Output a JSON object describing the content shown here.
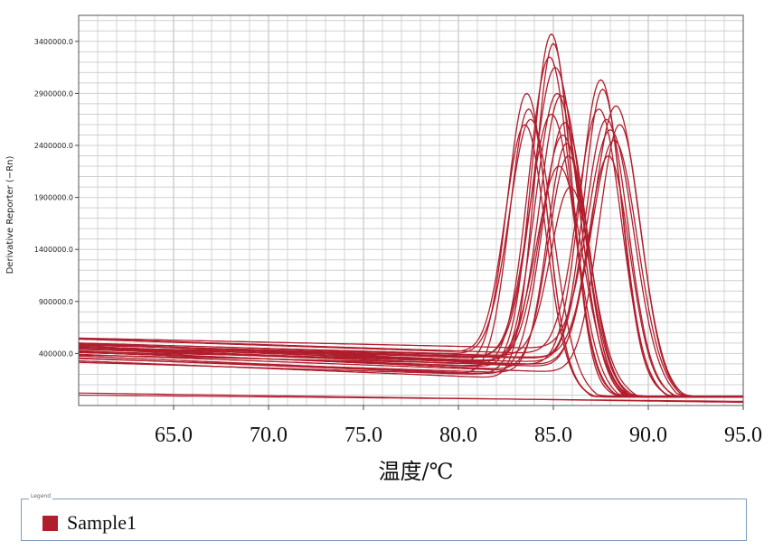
{
  "chart_data": {
    "type": "line",
    "xlabel": "温度/℃",
    "ylabel": "Derivative Reporter (−Rn)",
    "x_ticks": [
      "65.0",
      "70.0",
      "75.0",
      "80.0",
      "85.0",
      "90.0",
      "95.0"
    ],
    "x_tick_values": [
      65,
      70,
      75,
      80,
      85,
      90,
      95
    ],
    "y_ticks": [
      "400000.0",
      "900000.0",
      "1400000.0",
      "1900000.0",
      "2400000.0",
      "2900000.0",
      "3400000.0"
    ],
    "y_tick_values": [
      400000,
      900000,
      1400000,
      1900000,
      2400000,
      2900000,
      3400000
    ],
    "xlim": [
      60.0,
      95.0
    ],
    "ylim": [
      -100000,
      3650000
    ],
    "grid": true,
    "line_color": "#b01e2d",
    "baseline_range": [
      300000,
      550000
    ],
    "series_groups": [
      {
        "peak_x": [
          83.6,
          83.7,
          83.8,
          83.5
        ],
        "peak_y": [
          2900000,
          2750000,
          2650000,
          2600000
        ]
      },
      {
        "peak_x": [
          84.9,
          85.0,
          84.8,
          85.1,
          85.2,
          84.9
        ],
        "peak_y": [
          3470000,
          3380000,
          3250000,
          3150000,
          2900000,
          2700000
        ]
      },
      {
        "peak_x": [
          85.4,
          85.6,
          85.5,
          85.7,
          85.8,
          85.3,
          85.9
        ],
        "peak_y": [
          2880000,
          2620000,
          2500000,
          2420000,
          2300000,
          2200000,
          2000000
        ]
      },
      {
        "peak_x": [
          87.5,
          87.6,
          87.4,
          87.8,
          88.0,
          88.2,
          87.9
        ],
        "peak_y": [
          3030000,
          2940000,
          2750000,
          2650000,
          2550000,
          2450000,
          2300000
        ]
      },
      {
        "peak_x": [
          88.3,
          88.5
        ],
        "peak_y": [
          2780000,
          2600000
        ]
      }
    ],
    "low_traces": [
      {
        "start_y": 0,
        "end_y": -60000
      },
      {
        "start_y": 20000,
        "end_y": -70000
      }
    ],
    "legend": {
      "title": "Legend",
      "entries": [
        {
          "label": "Sample1",
          "color": "#b01e2d"
        }
      ]
    }
  }
}
